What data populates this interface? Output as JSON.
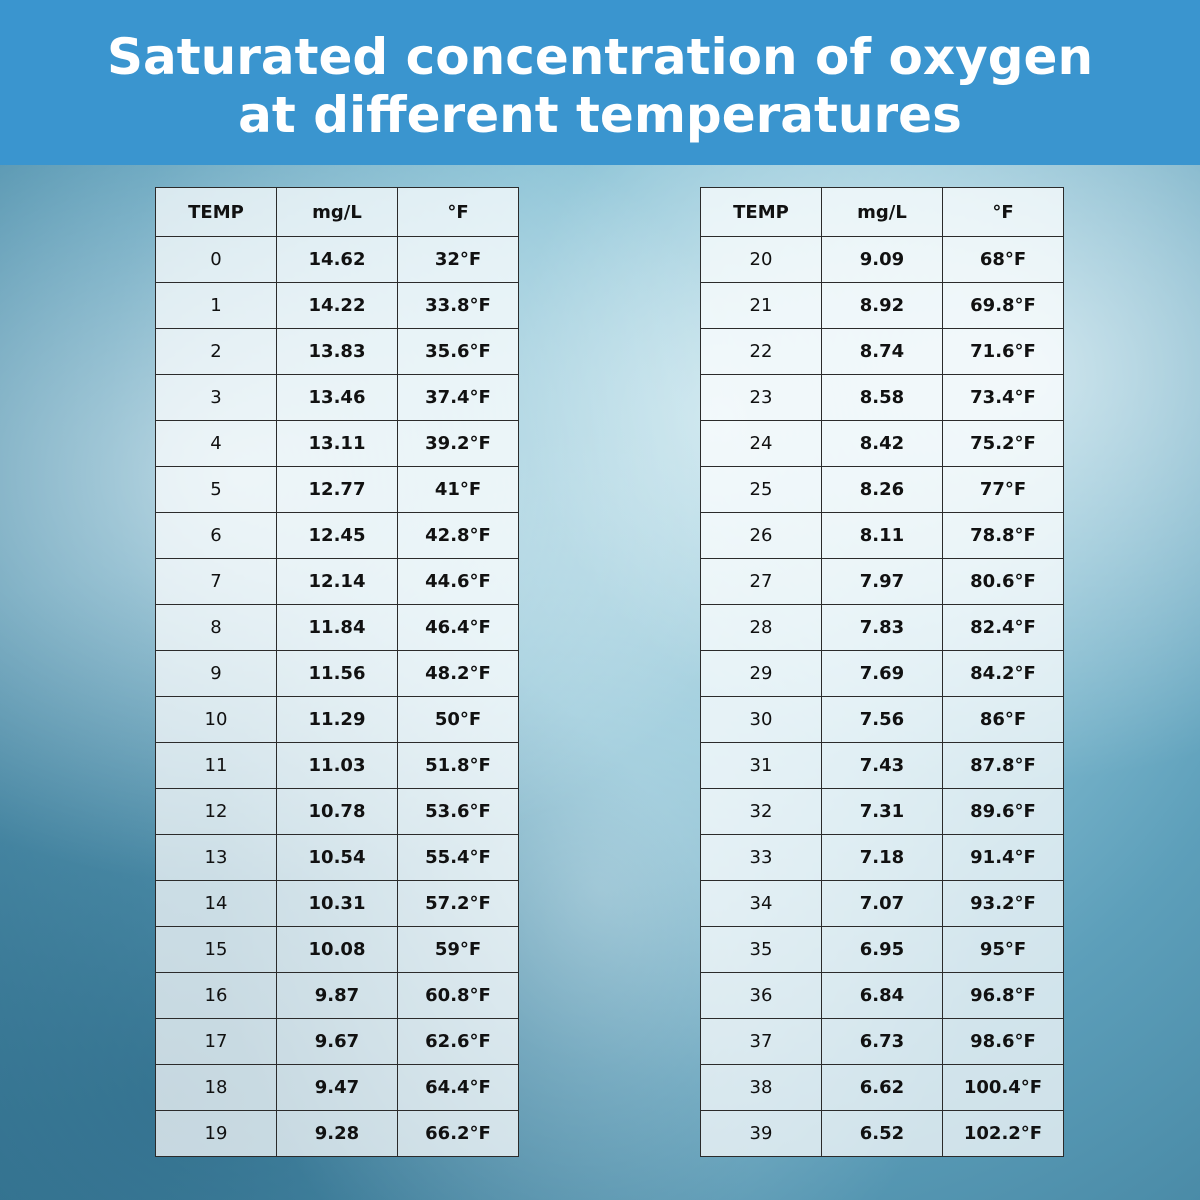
{
  "header": {
    "title_lines": [
      "Saturated concentration of oxygen",
      "at different temperatures"
    ]
  },
  "tables": [
    {
      "columns": [
        "TEMP",
        "mg/L",
        "°F"
      ],
      "rows": [
        [
          "0",
          "14.62",
          "32°F"
        ],
        [
          "1",
          "14.22",
          "33.8°F"
        ],
        [
          "2",
          "13.83",
          "35.6°F"
        ],
        [
          "3",
          "13.46",
          "37.4°F"
        ],
        [
          "4",
          "13.11",
          "39.2°F"
        ],
        [
          "5",
          "12.77",
          "41°F"
        ],
        [
          "6",
          "12.45",
          "42.8°F"
        ],
        [
          "7",
          "12.14",
          "44.6°F"
        ],
        [
          "8",
          "11.84",
          "46.4°F"
        ],
        [
          "9",
          "11.56",
          "48.2°F"
        ],
        [
          "10",
          "11.29",
          "50°F"
        ],
        [
          "11",
          "11.03",
          "51.8°F"
        ],
        [
          "12",
          "10.78",
          "53.6°F"
        ],
        [
          "13",
          "10.54",
          "55.4°F"
        ],
        [
          "14",
          "10.31",
          "57.2°F"
        ],
        [
          "15",
          "10.08",
          "59°F"
        ],
        [
          "16",
          "9.87",
          "60.8°F"
        ],
        [
          "17",
          "9.67",
          "62.6°F"
        ],
        [
          "18",
          "9.47",
          "64.4°F"
        ],
        [
          "19",
          "9.28",
          "66.2°F"
        ]
      ]
    },
    {
      "columns": [
        "TEMP",
        "mg/L",
        "°F"
      ],
      "rows": [
        [
          "20",
          "9.09",
          "68°F"
        ],
        [
          "21",
          "8.92",
          "69.8°F"
        ],
        [
          "22",
          "8.74",
          "71.6°F"
        ],
        [
          "23",
          "8.58",
          "73.4°F"
        ],
        [
          "24",
          "8.42",
          "75.2°F"
        ],
        [
          "25",
          "8.26",
          "77°F"
        ],
        [
          "26",
          "8.11",
          "78.8°F"
        ],
        [
          "27",
          "7.97",
          "80.6°F"
        ],
        [
          "28",
          "7.83",
          "82.4°F"
        ],
        [
          "29",
          "7.69",
          "84.2°F"
        ],
        [
          "30",
          "7.56",
          "86°F"
        ],
        [
          "31",
          "7.43",
          "87.8°F"
        ],
        [
          "32",
          "7.31",
          "89.6°F"
        ],
        [
          "33",
          "7.18",
          "91.4°F"
        ],
        [
          "34",
          "7.07",
          "93.2°F"
        ],
        [
          "35",
          "6.95",
          "95°F"
        ],
        [
          "36",
          "6.84",
          "96.8°F"
        ],
        [
          "37",
          "6.73",
          "98.6°F"
        ],
        [
          "38",
          "6.62",
          "100.4°F"
        ],
        [
          "39",
          "6.52",
          "102.2°F"
        ]
      ]
    }
  ]
}
